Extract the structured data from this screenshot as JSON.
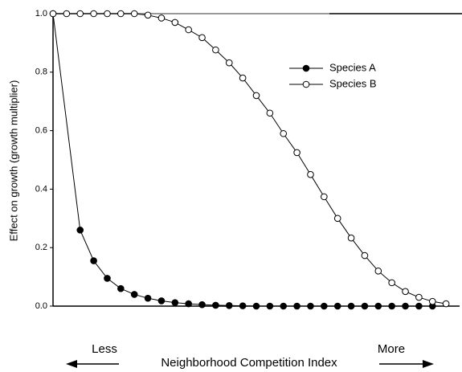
{
  "chart_data": {
    "type": "line",
    "xlabel": "Neighborhood Competition Index",
    "ylabel": "Effect on growth (growth multiplier)",
    "annotations": [
      "Less",
      "More"
    ],
    "xlim": [
      0,
      30
    ],
    "ylim": [
      0,
      1
    ],
    "yticks": [
      {
        "value": 0,
        "label": "0.0"
      },
      0.2,
      0.4,
      0.6,
      0.8,
      {
        "value": 1,
        "label": "1.0"
      }
    ],
    "legend": "upper right",
    "series": [
      {
        "name": "Species A",
        "color": "#000000",
        "marker": "filled",
        "x": [
          0,
          2,
          3,
          4,
          5,
          6,
          7,
          8,
          9,
          10,
          11,
          12,
          13,
          14,
          15,
          16,
          17,
          18,
          19,
          20,
          21,
          22,
          23,
          24,
          25,
          26,
          27,
          28
        ],
        "values": [
          1,
          0.26,
          0.155,
          0.095,
          0.06,
          0.04,
          0.027,
          0.018,
          0.012,
          0.008,
          0.005,
          0.003,
          0.002,
          0.001,
          0,
          0,
          0,
          0,
          0,
          0,
          0,
          0,
          0,
          0,
          0,
          0,
          0,
          0
        ]
      },
      {
        "name": "Species B",
        "color": "#000000",
        "marker": "open",
        "x": [
          0,
          1,
          2,
          3,
          4,
          5,
          6,
          7,
          8,
          9,
          10,
          11,
          12,
          13,
          14,
          15,
          16,
          17,
          18,
          19,
          20,
          21,
          22,
          23,
          24,
          25,
          26,
          27,
          28,
          29
        ],
        "values": [
          1,
          1,
          1,
          1,
          1,
          1,
          1,
          0.995,
          0.985,
          0.97,
          0.945,
          0.918,
          0.876,
          0.832,
          0.78,
          0.72,
          0.66,
          0.59,
          0.525,
          0.45,
          0.374,
          0.3,
          0.233,
          0.173,
          0.12,
          0.08,
          0.05,
          0.03,
          0.016,
          0.008
        ]
      }
    ]
  }
}
